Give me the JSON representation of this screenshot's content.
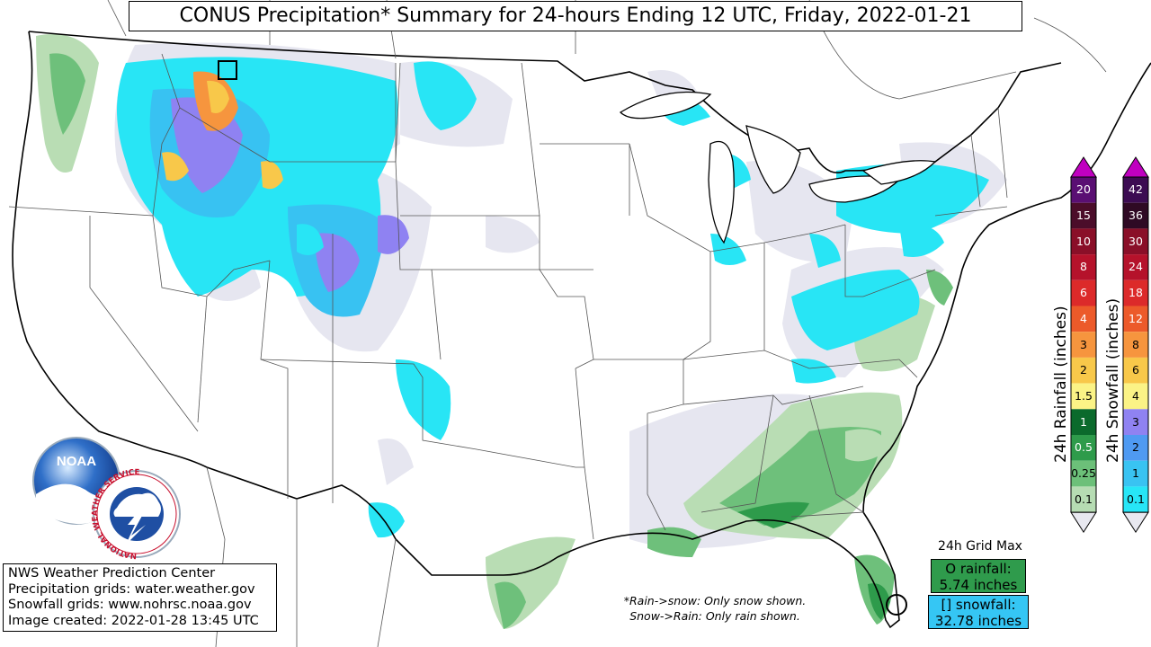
{
  "title": "CONUS Precipitation* Summary for 24-hours Ending 12 UTC, Friday, 2022-01-21",
  "credits": [
    "NWS Weather Prediction Center",
    "Precipitation grids: water.weather.gov",
    "Snowfall grids: www.nohrsc.noaa.gov",
    "Image created: 2022-01-28 13:45 UTC"
  ],
  "notes": [
    "*Rain->snow: Only snow shown.",
    "Snow->Rain: Only rain shown."
  ],
  "grid_max": {
    "title": "24h Grid Max",
    "rain_line1": "O rainfall:",
    "rain_line2": "5.74 inches",
    "snow_line1": "[] snowfall:",
    "snow_line2": "32.78 inches",
    "rain_color": "#2f9b4c",
    "snow_color": "#35c6f4"
  },
  "logos": {
    "noaa": "NOAA",
    "nws_ring": "NATIONAL WEATHER SERVICE"
  },
  "rain_scale": {
    "label": "24h Rainfall (inches)",
    "levels": [
      {
        "label": "20",
        "color": "#5a0f73"
      },
      {
        "label": "15",
        "color": "#4b0d2a"
      },
      {
        "label": "10",
        "color": "#8a0f28"
      },
      {
        "label": "8",
        "color": "#b5122b"
      },
      {
        "label": "6",
        "color": "#dc2a2a"
      },
      {
        "label": "4",
        "color": "#ec5a2a"
      },
      {
        "label": "3",
        "color": "#f6953e"
      },
      {
        "label": "2",
        "color": "#f8c84a"
      },
      {
        "label": "1.5",
        "color": "#fbf386"
      },
      {
        "label": "1",
        "color": "#0b6a2c"
      },
      {
        "label": "0.5",
        "color": "#2e9b4b"
      },
      {
        "label": "0.25",
        "color": "#6cc079"
      },
      {
        "label": "0.1",
        "color": "#b6dcb3"
      }
    ],
    "top_color": "#c000c0",
    "bottom_color": "#e8e8f0"
  },
  "snow_scale": {
    "label": "24h Snowfall (inches)",
    "levels": [
      {
        "label": "42",
        "color": "#3c0c52"
      },
      {
        "label": "36",
        "color": "#2f0a24"
      },
      {
        "label": "30",
        "color": "#8a0f28"
      },
      {
        "label": "24",
        "color": "#b5122b"
      },
      {
        "label": "18",
        "color": "#dc2a2a"
      },
      {
        "label": "12",
        "color": "#ec5a2a"
      },
      {
        "label": "8",
        "color": "#f6953e"
      },
      {
        "label": "6",
        "color": "#f8c84a"
      },
      {
        "label": "4",
        "color": "#fbf386"
      },
      {
        "label": "3",
        "color": "#8f82f2"
      },
      {
        "label": "2",
        "color": "#4f9af2"
      },
      {
        "label": "1",
        "color": "#39c3f2"
      },
      {
        "label": "0.1",
        "color": "#27e6f7"
      }
    ],
    "top_color": "#c000c0",
    "bottom_color": "#e8e8f0"
  },
  "map_colors": {
    "trace": "#e6e6f0",
    "rain_light": "#b9ddb4",
    "rain_mid": "#6ec07b",
    "rain_heavy": "#2e9b4b",
    "snow_light": "#28e5f5",
    "snow_mid": "#38c2f2",
    "snow_heavy": "#8f82f2",
    "snow_peak": "#f8c84a"
  }
}
